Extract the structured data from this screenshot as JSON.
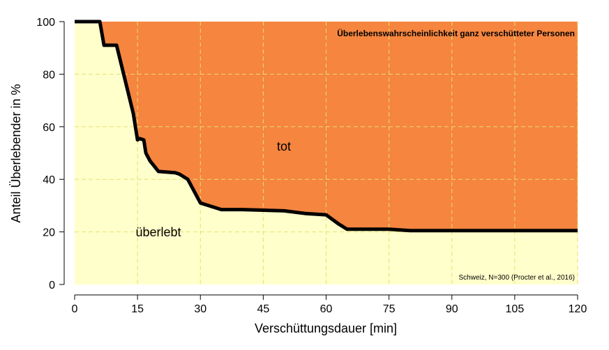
{
  "chart_data": {
    "type": "area",
    "title": "Überlebenswahrscheinlichkeit ganz verschütteter Personen",
    "source": "Schweiz, N=300 (Procter et al., 2016)",
    "xlabel": "Verschüttungsdauer [min]",
    "ylabel": "Anteil Überlebender in %",
    "xlim": [
      0,
      120
    ],
    "ylim": [
      0,
      100
    ],
    "xticks": [
      0,
      15,
      30,
      45,
      60,
      75,
      90,
      105,
      120
    ],
    "yticks": [
      0,
      20,
      40,
      60,
      80,
      100
    ],
    "grid": true,
    "region_labels": {
      "upper": "tot",
      "lower": "überlebt"
    },
    "colors": {
      "upper": "#f5853f",
      "lower": "#ffffcc",
      "line": "#000000",
      "grid": "#e8df6c"
    },
    "series": [
      {
        "x": [
          0,
          6,
          7,
          10,
          12,
          14,
          15,
          15.5,
          16.5,
          17,
          18,
          20,
          24,
          25,
          27,
          28,
          30,
          35,
          40,
          50,
          55,
          60,
          63,
          65,
          70,
          75,
          80,
          90,
          100,
          120
        ],
        "values": [
          100,
          100,
          91,
          91,
          78,
          65,
          55,
          55.5,
          55,
          50,
          47,
          43,
          42.5,
          42,
          40,
          37,
          31,
          28.5,
          28.5,
          28,
          27,
          26.5,
          23,
          21,
          21,
          21,
          20.5,
          20.5,
          20.5,
          20.5
        ]
      }
    ]
  }
}
